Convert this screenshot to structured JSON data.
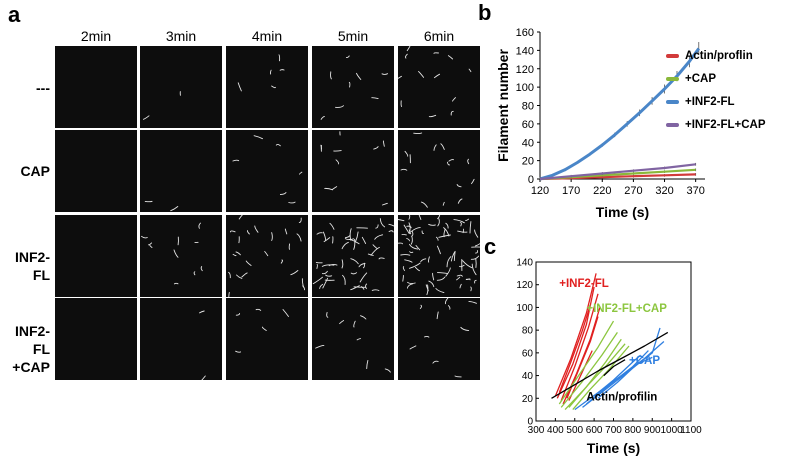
{
  "figure": {
    "panel_labels": [
      "a",
      "b",
      "c"
    ]
  },
  "panel_a": {
    "column_headers": [
      "2min",
      "3min",
      "4min",
      "5min",
      "6min"
    ],
    "row_headers": [
      "---",
      "CAP",
      "INF2-FL",
      "INF2-FL\n+CAP"
    ],
    "background_color": "#0d0d0d",
    "filament_color": "#e6e6e6",
    "filament_density": [
      [
        0,
        2,
        5,
        8,
        12
      ],
      [
        0,
        2,
        6,
        10,
        14
      ],
      [
        0,
        10,
        22,
        45,
        70
      ],
      [
        0,
        2,
        5,
        8,
        10
      ]
    ]
  },
  "chart_data": [
    {
      "type": "line",
      "panel": "b",
      "title": "",
      "xlabel": "Time (s)",
      "ylabel": "Filament number",
      "xlim": [
        120,
        385
      ],
      "ylim": [
        0,
        160
      ],
      "x_ticks": [
        120,
        170,
        220,
        270,
        320,
        370
      ],
      "y_ticks": [
        0,
        20,
        40,
        60,
        80,
        100,
        120,
        140,
        160
      ],
      "legend_position": "right",
      "series": [
        {
          "name": "Actin/proflin",
          "color": "#d23a3a",
          "x": [
            120,
            170,
            220,
            270,
            320,
            370
          ],
          "y": [
            0,
            1,
            2,
            3,
            4,
            5
          ]
        },
        {
          "name": "+CAP",
          "color": "#8ab83a",
          "x": [
            120,
            170,
            220,
            270,
            320,
            370
          ],
          "y": [
            0,
            2,
            4,
            6,
            8,
            10
          ]
        },
        {
          "name": "+INF2-FL",
          "color": "#4a86c8",
          "x": [
            120,
            140,
            160,
            180,
            200,
            220,
            240,
            260,
            280,
            300,
            320,
            340,
            360,
            375
          ],
          "y": [
            0,
            4,
            10,
            18,
            27,
            37,
            48,
            60,
            72,
            85,
            98,
            112,
            128,
            142
          ]
        },
        {
          "name": "+INF2-FL+CAP",
          "color": "#8064a2",
          "x": [
            120,
            170,
            220,
            270,
            320,
            370
          ],
          "y": [
            0,
            3,
            6,
            9,
            12,
            16
          ]
        }
      ]
    },
    {
      "type": "line",
      "panel": "c",
      "title": "",
      "xlabel": "Time (s)",
      "ylabel": "",
      "xlim": [
        300,
        1100
      ],
      "ylim": [
        0,
        140
      ],
      "x_ticks": [
        300,
        400,
        500,
        600,
        700,
        800,
        900,
        1000,
        1100
      ],
      "y_ticks": [
        0,
        20,
        40,
        60,
        80,
        100,
        120,
        140
      ],
      "annotations": [
        {
          "text": "+INF2-FL",
          "color": "#e02020"
        },
        {
          "text": "+INF2-FL+CAP",
          "color": "#8cc63f"
        },
        {
          "text": "+CAP",
          "color": "#2f7fe0"
        },
        {
          "text": "Actin/profilin",
          "color": "#000000"
        }
      ],
      "groups": [
        {
          "color": "#e02020",
          "traces": [
            {
              "x": [
                400,
                480,
                560,
                610
              ],
              "y": [
                22,
                55,
                95,
                130
              ]
            },
            {
              "x": [
                410,
                490,
                560,
                600
              ],
              "y": [
                20,
                50,
                85,
                118
              ]
            },
            {
              "x": [
                430,
                500,
                570,
                620
              ],
              "y": [
                18,
                48,
                82,
                112
              ]
            },
            {
              "x": [
                420,
                480,
                540,
                580
              ],
              "y": [
                25,
                52,
                80,
                102
              ]
            },
            {
              "x": [
                440,
                510,
                580,
                630
              ],
              "y": [
                15,
                42,
                72,
                100
              ]
            },
            {
              "x": [
                460,
                520,
                580,
                620
              ],
              "y": [
                20,
                45,
                70,
                92
              ]
            },
            {
              "x": [
                470,
                530,
                590
              ],
              "y": [
                18,
                40,
                62
              ]
            }
          ]
        },
        {
          "color": "#8cc63f",
          "traces": [
            {
              "x": [
                420,
                520,
                620,
                700
              ],
              "y": [
                15,
                40,
                65,
                88
              ]
            },
            {
              "x": [
                430,
                540,
                640,
                720
              ],
              "y": [
                12,
                35,
                58,
                78
              ]
            },
            {
              "x": [
                450,
                560,
                660,
                740
              ],
              "y": [
                10,
                30,
                52,
                72
              ]
            },
            {
              "x": [
                470,
                570,
                670,
                760
              ],
              "y": [
                12,
                32,
                50,
                68
              ]
            },
            {
              "x": [
                490,
                580,
                680,
                780
              ],
              "y": [
                10,
                28,
                46,
                66
              ]
            }
          ]
        },
        {
          "color": "#2f7fe0",
          "traces": [
            {
              "x": [
                500,
                620,
                740,
                860,
                960
              ],
              "y": [
                10,
                25,
                40,
                55,
                70
              ]
            },
            {
              "x": [
                540,
                660,
                780,
                900,
                940
              ],
              "y": [
                12,
                28,
                44,
                60,
                82
              ]
            },
            {
              "x": [
                560,
                680,
                800,
                880
              ],
              "y": [
                15,
                32,
                48,
                62
              ]
            },
            {
              "x": [
                600,
                700,
                800,
                840
              ],
              "y": [
                22,
                36,
                52,
                58
              ]
            },
            {
              "x": [
                620,
                720,
                820,
                900
              ],
              "y": [
                20,
                34,
                50,
                56
              ]
            }
          ]
        },
        {
          "color": "#000000",
          "traces": [
            {
              "x": [
                380,
                500,
                620,
                740,
                860,
                980
              ],
              "y": [
                20,
                32,
                44,
                55,
                66,
                78
              ]
            },
            {
              "x": [
                650,
                700,
                760
              ],
              "y": [
                40,
                48,
                54
              ]
            }
          ]
        }
      ]
    }
  ]
}
